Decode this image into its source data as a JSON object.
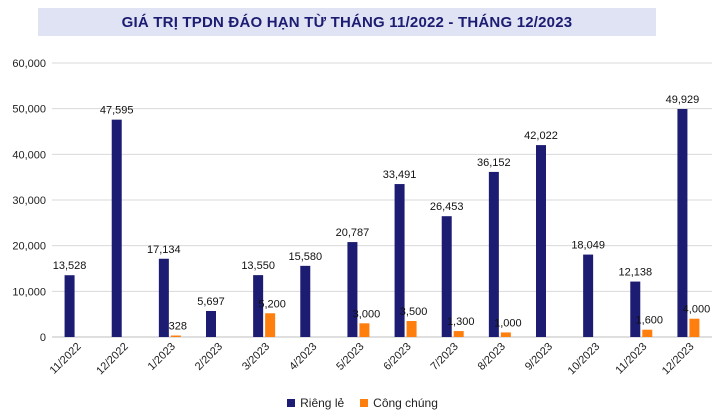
{
  "chart_data": {
    "type": "bar",
    "title": "GIÁ TRỊ TPDN ĐÁO HẠN TỪ THÁNG 11/2022 - THÁNG 12/2023",
    "categories": [
      "11/2022",
      "12/2022",
      "1/2023",
      "2/2023",
      "3/2023",
      "4/2023",
      "5/2023",
      "6/2023",
      "7/2023",
      "8/2023",
      "9/2023",
      "10/2023",
      "11/2023",
      "12/2023"
    ],
    "series": [
      {
        "name": "Riêng lẻ",
        "color": "#1c1c72",
        "values": [
          13528,
          47595,
          17134,
          5697,
          13550,
          15580,
          20787,
          33491,
          26453,
          36152,
          42022,
          18049,
          12138,
          49929
        ]
      },
      {
        "name": "Công chúng",
        "color": "#ff7f0e",
        "values": [
          null,
          null,
          328,
          null,
          5200,
          null,
          3000,
          3500,
          1300,
          1000,
          null,
          null,
          1600,
          4000
        ]
      }
    ],
    "ylim": [
      0,
      60000
    ],
    "yticks": [
      0,
      10000,
      20000,
      30000,
      40000,
      50000,
      60000
    ],
    "grid": true,
    "legend": "bottom"
  }
}
